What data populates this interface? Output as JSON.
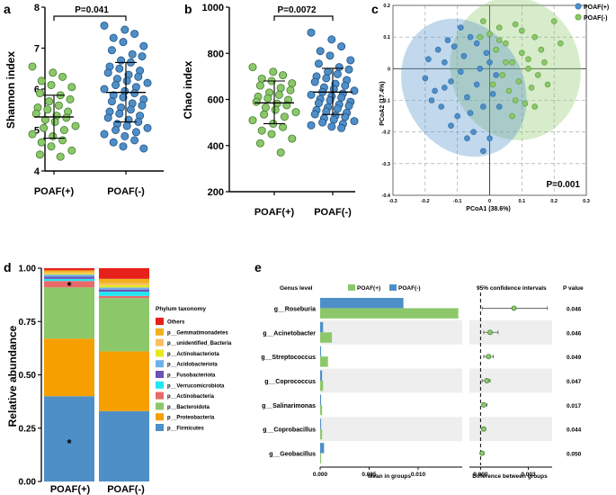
{
  "colors": {
    "green": "#8cc86a",
    "blue": "#4f8fc8",
    "orange": "#f5a000",
    "red": "#e8201a",
    "pink": "#e86a6a",
    "cyan": "#22e6f0",
    "purple": "#6e50b8",
    "lightblue": "#6fb0e8",
    "yellow": "#e8e820",
    "lightorange": "#f8c060",
    "gold": "#f0b020"
  },
  "panels": {
    "a": "a",
    "b": "b",
    "c": "c",
    "d": "d",
    "e": "e"
  },
  "chart_data": [
    {
      "panel": "a",
      "type": "scatter",
      "title": "",
      "ylabel": "Shannon index",
      "ylim": [
        4,
        8
      ],
      "yticks": [
        "4",
        "5",
        "6",
        "7",
        "8"
      ],
      "categories": [
        "POAF(+)",
        "POAF(-)"
      ],
      "pvalue": "P=0.041",
      "summary": [
        {
          "mean": 5.32,
          "sd_low": 4.8,
          "sd_high": 5.85
        },
        {
          "mean": 5.92,
          "sd_low": 5.2,
          "sd_high": 6.65
        }
      ],
      "series": [
        {
          "name": "POAF(+)",
          "values": [
            6.55,
            6.4,
            6.3,
            6.2,
            6.1,
            6.05,
            5.9,
            5.85,
            5.75,
            5.7,
            5.6,
            5.55,
            5.5,
            5.45,
            5.4,
            5.35,
            5.3,
            5.25,
            5.2,
            5.1,
            5.05,
            5.0,
            4.9,
            4.85,
            4.75,
            4.7,
            4.6,
            4.5,
            4.4,
            4.35
          ]
        },
        {
          "name": "POAF(-)",
          "values": [
            7.55,
            7.45,
            7.35,
            7.25,
            7.15,
            7.05,
            6.95,
            6.85,
            6.8,
            6.7,
            6.65,
            6.55,
            6.5,
            6.45,
            6.4,
            6.35,
            6.3,
            6.25,
            6.2,
            6.15,
            6.1,
            6.05,
            6.0,
            5.95,
            5.9,
            5.85,
            5.8,
            5.75,
            5.7,
            5.65,
            5.6,
            5.55,
            5.5,
            5.45,
            5.4,
            5.35,
            5.3,
            5.25,
            5.2,
            5.15,
            5.1,
            5.05,
            5.0,
            4.95,
            4.9,
            4.85,
            4.75,
            4.7,
            4.6,
            4.55
          ]
        }
      ]
    },
    {
      "panel": "b",
      "type": "scatter",
      "title": "",
      "ylabel": "Chao index",
      "ylim": [
        200,
        1000
      ],
      "yticks": [
        "200",
        "400",
        "600",
        "800",
        "1000"
      ],
      "categories": [
        "POAF(+)",
        "POAF(-)"
      ],
      "pvalue": "P=0.0072",
      "summary": [
        {
          "mean": 585,
          "sd_low": 495,
          "sd_high": 680
        },
        {
          "mean": 632,
          "sd_low": 535,
          "sd_high": 735
        }
      ],
      "series": [
        {
          "name": "POAF(+)",
          "values": [
            740,
            720,
            705,
            690,
            680,
            670,
            660,
            650,
            640,
            630,
            620,
            612,
            605,
            598,
            590,
            582,
            575,
            565,
            555,
            545,
            535,
            525,
            510,
            495,
            480,
            465,
            450,
            430,
            410,
            370
          ]
        },
        {
          "name": "POAF(-)",
          "values": [
            890,
            860,
            830,
            810,
            790,
            770,
            755,
            740,
            730,
            720,
            710,
            700,
            692,
            684,
            676,
            668,
            660,
            652,
            645,
            638,
            632,
            626,
            620,
            614,
            608,
            602,
            596,
            590,
            584,
            578,
            572,
            566,
            560,
            554,
            548,
            542,
            536,
            530,
            524,
            518,
            512,
            506,
            500,
            494,
            488,
            482,
            476
          ]
        }
      ]
    },
    {
      "panel": "c",
      "type": "scatter",
      "title": "",
      "xlabel": "PCoA1 (38.6%)",
      "ylabel": "PCoA2 (17.4%)",
      "xlim": [
        -0.3,
        0.3
      ],
      "ylim": [
        -0.4,
        0.2
      ],
      "xticks": [
        "-0.3",
        "-0.2",
        "-0.1",
        "0",
        "0.1",
        "0.2",
        "0.3"
      ],
      "yticks": [
        "-0.4",
        "-0.3",
        "-0.2",
        "-0.1",
        "0",
        "0.1",
        "0.2"
      ],
      "pvalue": "P=0.001",
      "legend": [
        "POAF(+)",
        "POAF(-)"
      ],
      "series": [
        {
          "name": "POAF(+)",
          "points": [
            [
              -0.2,
              -0.03
            ],
            [
              -0.19,
              0.03
            ],
            [
              -0.17,
              -0.07
            ],
            [
              -0.16,
              0.06
            ],
            [
              -0.15,
              -0.12
            ],
            [
              -0.14,
              0.02
            ],
            [
              -0.13,
              0.09
            ],
            [
              -0.12,
              -0.04
            ],
            [
              -0.11,
              0.07
            ],
            [
              -0.1,
              -0.15
            ],
            [
              -0.09,
              -0.01
            ],
            [
              -0.08,
              0.04
            ],
            [
              -0.07,
              -0.09
            ],
            [
              -0.06,
              0.1
            ],
            [
              -0.05,
              -0.2
            ],
            [
              -0.04,
              -0.05
            ],
            [
              -0.03,
              0.0
            ],
            [
              -0.02,
              -0.12
            ],
            [
              -0.01,
              0.05
            ],
            [
              0.0,
              -0.22
            ],
            [
              0.01,
              -0.08
            ],
            [
              0.02,
              -0.02
            ],
            [
              -0.18,
              -0.1
            ],
            [
              -0.12,
              -0.18
            ],
            [
              -0.06,
              -0.14
            ],
            [
              -0.02,
              -0.26
            ],
            [
              0.03,
              -0.12
            ],
            [
              -0.09,
              0.13
            ],
            [
              -0.14,
              -0.06
            ],
            [
              -0.04,
              0.08
            ],
            [
              0.0,
              0.02
            ],
            [
              -0.07,
              -0.22
            ]
          ]
        },
        {
          "name": "POAF(-)",
          "points": [
            [
              -0.02,
              0.15
            ],
            [
              0.0,
              0.11
            ],
            [
              0.02,
              0.06
            ],
            [
              0.03,
              0.13
            ],
            [
              0.04,
              -0.02
            ],
            [
              0.05,
              0.08
            ],
            [
              0.06,
              -0.07
            ],
            [
              0.07,
              0.02
            ],
            [
              0.08,
              0.14
            ],
            [
              0.09,
              -0.04
            ],
            [
              0.1,
              0.05
            ],
            [
              0.11,
              -0.11
            ],
            [
              0.12,
              0.03
            ],
            [
              0.13,
              -0.06
            ],
            [
              0.14,
              0.1
            ],
            [
              0.15,
              -0.02
            ],
            [
              0.16,
              0.06
            ],
            [
              0.18,
              -0.05
            ],
            [
              0.2,
              0.15
            ],
            [
              0.22,
              0.08
            ],
            [
              0.01,
              -0.05
            ],
            [
              0.05,
              0.02
            ],
            [
              0.08,
              -0.1
            ],
            [
              0.1,
              0.12
            ],
            [
              0.12,
              0.0
            ],
            [
              0.14,
              -0.12
            ],
            [
              0.03,
              0.09
            ],
            [
              0.07,
              -0.15
            ],
            [
              0.17,
              0.02
            ],
            [
              -0.03,
              0.1
            ]
          ]
        }
      ]
    },
    {
      "panel": "d",
      "type": "bar",
      "stacked": true,
      "ylabel": "Relative abundance",
      "ylim": [
        0,
        1
      ],
      "yticks": [
        "0.00",
        "0.25",
        "0.50",
        "0.75",
        "1.00"
      ],
      "categories": [
        "POAF(+)",
        "POAF(-)"
      ],
      "legend_title": "Phylum taxonomy",
      "significance": [
        {
          "category": "POAF(+)",
          "series": "p__Firmicutes",
          "mark": "*"
        },
        {
          "category": "POAF(+)",
          "series": "p__Actinobacteria",
          "mark": "*"
        }
      ],
      "series": [
        {
          "name": "p__Firmicutes",
          "color": "#4f8fc8",
          "values": [
            0.4,
            0.33
          ]
        },
        {
          "name": "p__Proteobacteria",
          "color": "#f5a000",
          "values": [
            0.27,
            0.28
          ]
        },
        {
          "name": "p__Bacteroidota",
          "color": "#8cc86a",
          "values": [
            0.24,
            0.25
          ]
        },
        {
          "name": "p__Actinobacteria",
          "color": "#e86a6a",
          "values": [
            0.03,
            0.01
          ]
        },
        {
          "name": "p__Verrucomicrobiota",
          "color": "#22e6f0",
          "values": [
            0.01,
            0.02
          ]
        },
        {
          "name": "p__Fusobacteriota",
          "color": "#6e50b8",
          "values": [
            0.01,
            0.01
          ]
        },
        {
          "name": "p__Acidobacteriota",
          "color": "#6fb0e8",
          "values": [
            0.01,
            0.01
          ]
        },
        {
          "name": "p__Actinobacteriota",
          "color": "#e8e820",
          "values": [
            0.005,
            0.01
          ]
        },
        {
          "name": "p__unidentified_Bacteria",
          "color": "#f8c060",
          "values": [
            0.005,
            0.01
          ]
        },
        {
          "name": "p__Gemmatimonadetes",
          "color": "#f0b020",
          "values": [
            0.01,
            0.02
          ]
        },
        {
          "name": "Others",
          "color": "#e8201a",
          "values": [
            0.01,
            0.05
          ]
        }
      ]
    },
    {
      "panel": "e",
      "type": "bar",
      "orientation": "horizontal",
      "header": "Genus level",
      "xlabel": "Mean in groups",
      "xlim": [
        0,
        0.0145
      ],
      "xticks": [
        "0.000",
        "0.005",
        "0.010"
      ],
      "legend": [
        "POAF(+)",
        "POAF(-)"
      ],
      "categories": [
        "g__Roseburia",
        "g__Acinetobacter",
        "g__Streptococcus",
        "g__Coprococcus",
        "g__Salinarimonas",
        "g__Coprobacillus",
        "g__Geobacillus"
      ],
      "series": [
        {
          "name": "POAF(+)",
          "values": [
            0.0141,
            0.0012,
            0.0008,
            0.0003,
            0.0002,
            0.0002,
            0.0001
          ]
        },
        {
          "name": "POAF(-)",
          "values": [
            0.0085,
            0.0003,
            0.0001,
            0.0002,
            0.0001,
            0.0001,
            0.0004
          ]
        }
      ],
      "ci_header": "95% confidence intervals",
      "ci_xlabel": "Difference between groups",
      "ci_xlim": [
        -0.0007,
        0.0045
      ],
      "ci_xticks": [
        "0.000",
        "0.003"
      ],
      "differences": [
        {
          "diff": 0.0021,
          "low": 0.0001,
          "high": 0.0042
        },
        {
          "diff": 0.0006,
          "low": 0.0002,
          "high": 0.0011
        },
        {
          "diff": 0.0005,
          "low": 0.0002,
          "high": 0.0008
        },
        {
          "diff": 0.0004,
          "low": 0.0001,
          "high": 0.0006
        },
        {
          "diff": 0.0002,
          "low": 0.0001,
          "high": 0.0004
        },
        {
          "diff": 0.0002,
          "low": 0.0001,
          "high": 0.0003
        },
        {
          "diff": 0.0001,
          "low": 0.0,
          "high": 0.0002
        }
      ],
      "p_header": "P value",
      "pvalues": [
        "0.046",
        "0.046",
        "0.049",
        "0.047",
        "0.017",
        "0.044",
        "0.050"
      ]
    }
  ]
}
